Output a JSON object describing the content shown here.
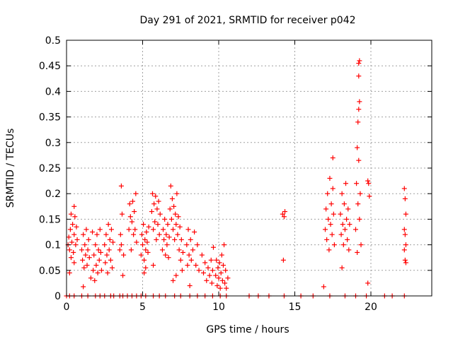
{
  "chart_data": {
    "type": "scatter",
    "title": "Day 291 of 2021, SRMTID for receiver p042",
    "xlabel": "GPS time / hours",
    "ylabel": "SRMTID / TECUs",
    "xlim": [
      0,
      24
    ],
    "ylim": [
      0,
      0.5
    ],
    "grid": true,
    "marker": "+",
    "color": "#ff0000",
    "xticks": [
      0,
      5,
      10,
      15,
      20
    ],
    "xtick_labels": [
      "0",
      "5",
      "10",
      "15",
      "20"
    ],
    "yticks": [
      0,
      0.05,
      0.1,
      0.15,
      0.2,
      0.25,
      0.3,
      0.35,
      0.4,
      0.45,
      0.5
    ],
    "ytick_labels": [
      "0",
      "0.05",
      "0.1",
      "0.15",
      "0.2",
      "0.25",
      "0.3",
      "0.35",
      "0.4",
      "0.45",
      "0.5"
    ],
    "series": [
      {
        "name": "SRMTID",
        "points": [
          [
            0.1,
            0.1
          ],
          [
            0.15,
            0.115
          ],
          [
            0.2,
            0.09
          ],
          [
            0.25,
            0.13
          ],
          [
            0.3,
            0.075
          ],
          [
            0.3,
            0.16
          ],
          [
            0.35,
            0.105
          ],
          [
            0.4,
            0.14
          ],
          [
            0.45,
            0.085
          ],
          [
            0.5,
            0.12
          ],
          [
            0.5,
            0.065
          ],
          [
            0.55,
            0.155
          ],
          [
            0.6,
            0.1
          ],
          [
            0.65,
            0.135
          ],
          [
            0.7,
            0.11
          ],
          [
            0.5,
            0.175
          ],
          [
            0.2,
            0.045
          ],
          [
            1.0,
            0.09
          ],
          [
            1.05,
            0.07
          ],
          [
            1.1,
            0.12
          ],
          [
            1.15,
            0.055
          ],
          [
            1.2,
            0.1
          ],
          [
            1.25,
            0.08
          ],
          [
            1.3,
            0.13
          ],
          [
            1.35,
            0.06
          ],
          [
            1.4,
            0.09
          ],
          [
            1.45,
            0.11
          ],
          [
            1.5,
            0.075
          ],
          [
            1.1,
            0.018
          ],
          [
            1.6,
            0.035
          ],
          [
            1.7,
            0.125
          ],
          [
            1.75,
            0.05
          ],
          [
            1.8,
            0.08
          ],
          [
            1.85,
            0.03
          ],
          [
            1.9,
            0.1
          ],
          [
            1.95,
            0.06
          ],
          [
            2.0,
            0.12
          ],
          [
            2.05,
            0.045
          ],
          [
            2.1,
            0.09
          ],
          [
            2.15,
            0.07
          ],
          [
            2.2,
            0.13
          ],
          [
            2.25,
            0.085
          ],
          [
            2.3,
            0.05
          ],
          [
            2.5,
            0.1
          ],
          [
            2.55,
            0.065
          ],
          [
            2.6,
            0.12
          ],
          [
            2.65,
            0.08
          ],
          [
            2.7,
            0.045
          ],
          [
            2.75,
            0.14
          ],
          [
            2.8,
            0.09
          ],
          [
            2.85,
            0.11
          ],
          [
            2.9,
            0.07
          ],
          [
            2.95,
            0.13
          ],
          [
            3.0,
            0.055
          ],
          [
            3.05,
            0.105
          ],
          [
            3.5,
            0.09
          ],
          [
            3.55,
            0.12
          ],
          [
            3.6,
            0.215
          ],
          [
            3.65,
            0.16
          ],
          [
            3.7,
            0.04
          ],
          [
            3.75,
            0.08
          ],
          [
            3.6,
            0.1
          ],
          [
            4.1,
            0.13
          ],
          [
            4.15,
            0.18
          ],
          [
            4.2,
            0.155
          ],
          [
            4.25,
            0.09
          ],
          [
            4.3,
            0.145
          ],
          [
            4.35,
            0.185
          ],
          [
            4.4,
            0.12
          ],
          [
            4.45,
            0.165
          ],
          [
            4.5,
            0.13
          ],
          [
            4.55,
            0.2
          ],
          [
            4.6,
            0.105
          ],
          [
            4.9,
            0.08
          ],
          [
            4.95,
            0.12
          ],
          [
            5.0,
            0.1
          ],
          [
            5.05,
            0.14
          ],
          [
            5.1,
            0.07
          ],
          [
            5.15,
            0.11
          ],
          [
            5.2,
            0.09
          ],
          [
            5.25,
            0.125
          ],
          [
            5.3,
            0.105
          ],
          [
            5.35,
            0.085
          ],
          [
            5.4,
            0.135
          ],
          [
            5.2,
            0.055
          ],
          [
            5.1,
            0.045
          ],
          [
            5.6,
            0.165
          ],
          [
            5.65,
            0.2
          ],
          [
            5.7,
            0.13
          ],
          [
            5.75,
            0.18
          ],
          [
            5.8,
            0.145
          ],
          [
            5.85,
            0.195
          ],
          [
            5.9,
            0.11
          ],
          [
            5.95,
            0.17
          ],
          [
            6.0,
            0.14
          ],
          [
            6.05,
            0.185
          ],
          [
            6.1,
            0.12
          ],
          [
            6.15,
            0.16
          ],
          [
            5.7,
            0.06
          ],
          [
            6.3,
            0.09
          ],
          [
            6.35,
            0.13
          ],
          [
            6.4,
            0.11
          ],
          [
            6.45,
            0.15
          ],
          [
            6.5,
            0.08
          ],
          [
            6.55,
            0.12
          ],
          [
            6.6,
            0.1
          ],
          [
            6.65,
            0.14
          ],
          [
            6.7,
            0.075
          ],
          [
            6.75,
            0.115
          ],
          [
            6.8,
            0.17
          ],
          [
            6.85,
            0.215
          ],
          [
            6.9,
            0.15
          ],
          [
            6.95,
            0.19
          ],
          [
            7.0,
            0.13
          ],
          [
            7.05,
            0.175
          ],
          [
            7.1,
            0.11
          ],
          [
            7.15,
            0.16
          ],
          [
            7.2,
            0.14
          ],
          [
            7.25,
            0.2
          ],
          [
            7.3,
            0.12
          ],
          [
            7.35,
            0.155
          ],
          [
            7.4,
            0.09
          ],
          [
            7.45,
            0.135
          ],
          [
            7.5,
            0.07
          ],
          [
            7.55,
            0.11
          ],
          [
            7.6,
            0.05
          ],
          [
            7.65,
            0.085
          ],
          [
            7.0,
            0.03
          ],
          [
            7.2,
            0.04
          ],
          [
            7.9,
            0.1
          ],
          [
            7.95,
            0.06
          ],
          [
            8.0,
            0.13
          ],
          [
            8.05,
            0.08
          ],
          [
            8.1,
            0.02
          ],
          [
            8.15,
            0.11
          ],
          [
            8.2,
            0.07
          ],
          [
            8.3,
            0.09
          ],
          [
            8.4,
            0.125
          ],
          [
            8.5,
            0.06
          ],
          [
            8.6,
            0.1
          ],
          [
            8.7,
            0.05
          ],
          [
            8.9,
            0.08
          ],
          [
            9.0,
            0.045
          ],
          [
            9.1,
            0.065
          ],
          [
            9.2,
            0.03
          ],
          [
            9.3,
            0.055
          ],
          [
            9.4,
            0.04
          ],
          [
            9.5,
            0.07
          ],
          [
            9.55,
            0.025
          ],
          [
            9.6,
            0.05
          ],
          [
            9.65,
            0.095
          ],
          [
            9.8,
            0.04
          ],
          [
            9.85,
            0.07
          ],
          [
            9.9,
            0.02
          ],
          [
            9.95,
            0.055
          ],
          [
            10.0,
            0.035
          ],
          [
            10.05,
            0.065
          ],
          [
            10.1,
            0.015
          ],
          [
            10.15,
            0.045
          ],
          [
            10.2,
            0.08
          ],
          [
            10.25,
            0.03
          ],
          [
            10.3,
            0.06
          ],
          [
            10.35,
            0.1
          ],
          [
            10.4,
            0.025
          ],
          [
            10.45,
            0.05
          ],
          [
            10.5,
            0.015
          ],
          [
            10.6,
            0.035
          ],
          [
            14.2,
            0.16
          ],
          [
            14.3,
            0.155
          ],
          [
            14.35,
            0.165
          ],
          [
            14.25,
            0.07
          ],
          [
            17.0,
            0.13
          ],
          [
            17.05,
            0.17
          ],
          [
            17.1,
            0.11
          ],
          [
            17.15,
            0.2
          ],
          [
            17.2,
            0.15
          ],
          [
            17.25,
            0.09
          ],
          [
            17.3,
            0.23
          ],
          [
            17.35,
            0.14
          ],
          [
            17.4,
            0.18
          ],
          [
            17.45,
            0.12
          ],
          [
            17.5,
            0.27
          ],
          [
            17.55,
            0.16
          ],
          [
            17.6,
            0.1
          ],
          [
            17.5,
            0.21
          ],
          [
            16.9,
            0.018
          ],
          [
            18.0,
            0.16
          ],
          [
            18.05,
            0.12
          ],
          [
            18.1,
            0.2
          ],
          [
            18.15,
            0.14
          ],
          [
            18.2,
            0.1
          ],
          [
            18.25,
            0.18
          ],
          [
            18.3,
            0.13
          ],
          [
            18.35,
            0.22
          ],
          [
            18.4,
            0.15
          ],
          [
            18.45,
            0.11
          ],
          [
            18.5,
            0.17
          ],
          [
            18.55,
            0.09
          ],
          [
            18.6,
            0.14
          ],
          [
            18.1,
            0.055
          ],
          [
            19.0,
            0.13
          ],
          [
            19.05,
            0.22
          ],
          [
            19.1,
            0.29
          ],
          [
            19.15,
            0.18
          ],
          [
            19.2,
            0.265
          ],
          [
            19.25,
            0.15
          ],
          [
            19.2,
            0.365
          ],
          [
            19.25,
            0.38
          ],
          [
            19.15,
            0.34
          ],
          [
            19.2,
            0.43
          ],
          [
            19.2,
            0.455
          ],
          [
            19.25,
            0.46
          ],
          [
            19.3,
            0.2
          ],
          [
            19.35,
            0.1
          ],
          [
            19.1,
            0.085
          ],
          [
            19.8,
            0.225
          ],
          [
            19.85,
            0.22
          ],
          [
            19.9,
            0.195
          ],
          [
            19.8,
            0.025
          ],
          [
            22.2,
            0.21
          ],
          [
            22.25,
            0.19
          ],
          [
            22.3,
            0.16
          ],
          [
            22.2,
            0.13
          ],
          [
            22.25,
            0.12
          ],
          [
            22.3,
            0.1
          ],
          [
            22.2,
            0.09
          ],
          [
            22.25,
            0.07
          ],
          [
            22.3,
            0.065
          ],
          [
            0.0,
            0
          ],
          [
            0.2,
            0
          ],
          [
            0.5,
            0
          ],
          [
            1.0,
            0
          ],
          [
            1.4,
            0
          ],
          [
            1.9,
            0
          ],
          [
            2.2,
            0
          ],
          [
            2.5,
            0
          ],
          [
            2.9,
            0
          ],
          [
            3.1,
            0
          ],
          [
            3.5,
            0
          ],
          [
            3.7,
            0
          ],
          [
            4.0,
            0
          ],
          [
            4.3,
            0
          ],
          [
            4.6,
            0
          ],
          [
            4.9,
            0
          ],
          [
            5.2,
            0
          ],
          [
            5.7,
            0
          ],
          [
            6.1,
            0
          ],
          [
            6.5,
            0
          ],
          [
            7.1,
            0
          ],
          [
            7.5,
            0
          ],
          [
            8.1,
            0
          ],
          [
            8.6,
            0
          ],
          [
            9.1,
            0
          ],
          [
            9.6,
            0
          ],
          [
            10.1,
            0
          ],
          [
            10.5,
            0
          ],
          [
            12.0,
            0
          ],
          [
            12.6,
            0
          ],
          [
            13.3,
            0
          ],
          [
            14.3,
            0
          ],
          [
            15.4,
            0
          ],
          [
            16.2,
            0
          ],
          [
            17.3,
            0
          ],
          [
            18.3,
            0
          ],
          [
            19.0,
            0
          ],
          [
            19.7,
            0
          ],
          [
            20.9,
            0
          ],
          [
            21.4,
            0
          ],
          [
            22.2,
            0
          ]
        ]
      }
    ]
  }
}
